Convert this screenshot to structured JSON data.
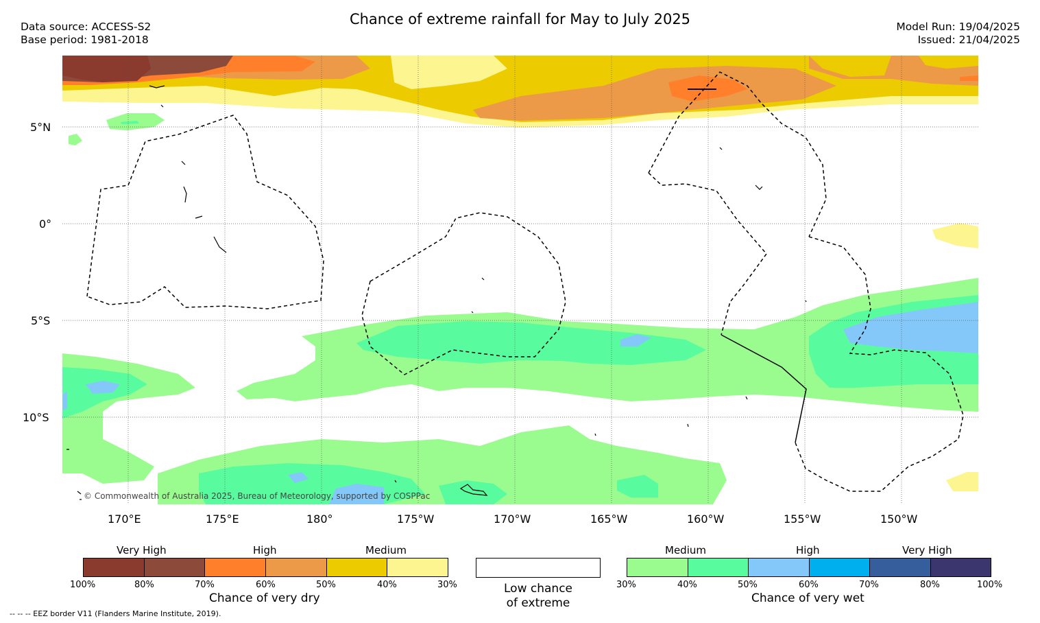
{
  "title": "Chance of extreme rainfall for May to July 2025",
  "data_source": "Data source: ACCESS-S2",
  "base_period": "Base period: 1981-2018",
  "model_run": "Model Run: 19/04/2025",
  "issued": "Issued: 21/04/2025",
  "copyright": "© Commonwealth of Australia 2025, Bureau of Meteorology, supported by COSPPac",
  "lat_labels": [
    "5°N",
    "0°",
    "5°S",
    "10°S"
  ],
  "lon_labels": [
    "170°E",
    "175°E",
    "180°",
    "175°W",
    "170°W",
    "165°W",
    "160°W",
    "155°W",
    "150°W"
  ],
  "dry_legend": {
    "categories": [
      "Very High",
      "High",
      "Medium"
    ],
    "ticks": [
      "100%",
      "80%",
      "70%",
      "60%",
      "50%",
      "40%",
      "30%"
    ],
    "colors": [
      "#8b3a2e",
      "#8b4a3a",
      "#ff7f2a",
      "#ec9a48",
      "#eccb00",
      "#fcf590"
    ],
    "title": "Chance of very dry"
  },
  "low_legend": {
    "line1": "Low chance",
    "line2": "of extreme"
  },
  "wet_legend": {
    "categories": [
      "Medium",
      "High",
      "Very High"
    ],
    "ticks": [
      "30%",
      "40%",
      "50%",
      "60%",
      "70%",
      "80%",
      "100%"
    ],
    "colors": [
      "#9afc8e",
      "#58fc9e",
      "#84c8fa",
      "#00b0ee",
      "#365e9c",
      "#3b376e"
    ],
    "title": "Chance of very wet"
  },
  "footnote": "--  --  -- EEZ border V11 (Flanders Marine Institute, 2019)."
}
